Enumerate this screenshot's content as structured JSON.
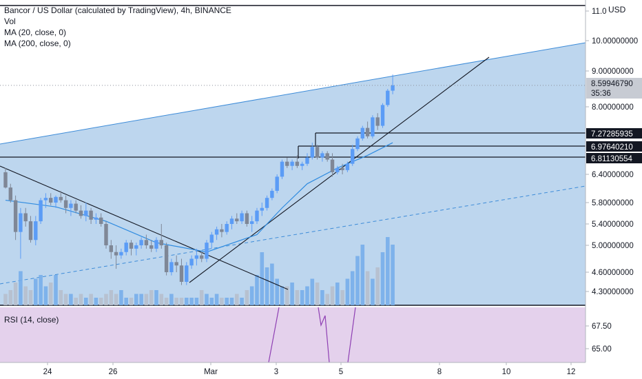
{
  "header": {
    "title": "Bancor / US Dollar (calculated by TradingView), 4h, BINANCE",
    "indicators": [
      "Vol",
      "MA (20, close, 0)",
      "MA (200, close, 0)"
    ],
    "rsi_label": "RSI (14, close)",
    "currency": "USD"
  },
  "price_axis": {
    "ticks": [
      "11.0",
      "10.00000000",
      "9.00000000",
      "8.00000000",
      "6.40000000",
      "5.80000000",
      "5.40000000",
      "5.00000000",
      "4.60000000",
      "4.30000000"
    ]
  },
  "rsi_axis": {
    "ticks": [
      "67.50",
      "65.00"
    ]
  },
  "time_axis": {
    "ticks": [
      "24",
      "26",
      "Mar",
      "3",
      "5",
      "8",
      "10",
      "12"
    ]
  },
  "tags": {
    "last_price": "8.59946790",
    "countdown": "35:36",
    "levels": [
      "7.27285935",
      "6.97640210",
      "6.81130554"
    ]
  },
  "colors": {
    "up": "#5b9cf6",
    "down": "#7f8796",
    "channel_fill": "#bdd6ee",
    "channel_line": "#3c8bd8",
    "ma_line": "#2f8be0",
    "rsi_bg": "#e4d1ec",
    "rsi_line": "#8e3fb3",
    "vol_up": "#77aeea",
    "vol_down": "#b6bfcc"
  },
  "chart_data": {
    "type": "candlestick",
    "interval": "4h",
    "symbol": "BNTUSD",
    "exchange": "BINANCE",
    "candles": [
      [
        6.45,
        6.55,
        6.1,
        6.12
      ],
      [
        6.12,
        6.2,
        5.8,
        5.85
      ],
      [
        5.85,
        5.95,
        5.1,
        5.25
      ],
      [
        5.25,
        5.7,
        4.8,
        5.6
      ],
      [
        5.6,
        5.7,
        5.35,
        5.45
      ],
      [
        5.45,
        5.55,
        5.05,
        5.1
      ],
      [
        5.1,
        5.55,
        5.0,
        5.45
      ],
      [
        5.45,
        5.9,
        5.4,
        5.85
      ],
      [
        5.85,
        6.0,
        5.7,
        5.9
      ],
      [
        5.9,
        6.0,
        5.75,
        5.8
      ],
      [
        5.8,
        5.95,
        5.7,
        5.92
      ],
      [
        5.92,
        6.05,
        5.8,
        5.85
      ],
      [
        5.85,
        5.95,
        5.6,
        5.7
      ],
      [
        5.7,
        5.85,
        5.55,
        5.78
      ],
      [
        5.78,
        5.85,
        5.6,
        5.65
      ],
      [
        5.65,
        5.75,
        5.5,
        5.55
      ],
      [
        5.55,
        5.8,
        5.45,
        5.65
      ],
      [
        5.65,
        5.7,
        5.4,
        5.48
      ],
      [
        5.48,
        5.6,
        5.4,
        5.52
      ],
      [
        5.52,
        5.6,
        5.35,
        5.4
      ],
      [
        5.4,
        5.45,
        4.95,
        5.0
      ],
      [
        5.0,
        5.1,
        4.8,
        4.9
      ],
      [
        4.9,
        5.0,
        4.65,
        4.85
      ],
      [
        4.85,
        4.95,
        4.8,
        4.9
      ],
      [
        4.9,
        5.1,
        4.85,
        5.05
      ],
      [
        5.05,
        5.1,
        4.85,
        4.95
      ],
      [
        4.95,
        5.05,
        4.85,
        5.0
      ],
      [
        5.0,
        5.15,
        4.95,
        5.1
      ],
      [
        5.1,
        5.2,
        4.95,
        5.0
      ],
      [
        5.0,
        5.1,
        4.9,
        4.95
      ],
      [
        4.95,
        5.15,
        4.9,
        5.1
      ],
      [
        5.1,
        5.4,
        4.95,
        5.0
      ],
      [
        5.0,
        5.05,
        4.55,
        4.6
      ],
      [
        4.6,
        4.8,
        4.55,
        4.75
      ],
      [
        4.75,
        4.85,
        4.6,
        4.7
      ],
      [
        4.7,
        4.8,
        4.4,
        4.45
      ],
      [
        4.45,
        4.75,
        4.4,
        4.7
      ],
      [
        4.7,
        4.85,
        4.65,
        4.8
      ],
      [
        4.8,
        4.95,
        4.7,
        4.85
      ],
      [
        4.85,
        4.9,
        4.75,
        4.8
      ],
      [
        4.8,
        5.1,
        4.75,
        5.05
      ],
      [
        5.05,
        5.25,
        4.95,
        5.2
      ],
      [
        5.2,
        5.35,
        5.1,
        5.3
      ],
      [
        5.3,
        5.4,
        5.15,
        5.25
      ],
      [
        5.25,
        5.45,
        5.2,
        5.4
      ],
      [
        5.4,
        5.55,
        5.3,
        5.5
      ],
      [
        5.5,
        5.6,
        5.4,
        5.45
      ],
      [
        5.45,
        5.65,
        5.4,
        5.6
      ],
      [
        5.6,
        5.65,
        5.35,
        5.4
      ],
      [
        5.4,
        5.55,
        5.25,
        5.45
      ],
      [
        5.45,
        5.7,
        5.4,
        5.65
      ],
      [
        5.65,
        5.8,
        5.55,
        5.7
      ],
      [
        5.7,
        5.95,
        5.65,
        5.9
      ],
      [
        5.9,
        6.1,
        5.85,
        6.05
      ],
      [
        6.05,
        6.4,
        6.0,
        6.35
      ],
      [
        6.35,
        6.75,
        6.3,
        6.7
      ],
      [
        6.7,
        6.8,
        6.55,
        6.6
      ],
      [
        6.6,
        6.75,
        6.5,
        6.7
      ],
      [
        6.7,
        6.85,
        6.55,
        6.6
      ],
      [
        6.6,
        6.7,
        6.5,
        6.65
      ],
      [
        6.65,
        6.9,
        6.6,
        6.8
      ],
      [
        6.8,
        7.15,
        6.75,
        7.05
      ],
      [
        7.05,
        7.1,
        6.75,
        6.8
      ],
      [
        6.8,
        6.95,
        6.7,
        6.9
      ],
      [
        6.9,
        6.95,
        6.7,
        6.75
      ],
      [
        6.75,
        6.9,
        6.35,
        6.45
      ],
      [
        6.45,
        6.6,
        6.4,
        6.55
      ],
      [
        6.55,
        6.65,
        6.4,
        6.5
      ],
      [
        6.5,
        6.7,
        6.45,
        6.65
      ],
      [
        6.65,
        7.1,
        6.6,
        7.0
      ],
      [
        7.0,
        7.3,
        6.95,
        7.25
      ],
      [
        7.25,
        7.55,
        7.2,
        7.5
      ],
      [
        7.5,
        7.65,
        7.25,
        7.3
      ],
      [
        7.3,
        7.8,
        7.25,
        7.75
      ],
      [
        7.75,
        7.85,
        7.45,
        7.55
      ],
      [
        7.55,
        8.1,
        7.5,
        8.05
      ],
      [
        8.05,
        8.5,
        8.0,
        8.45
      ],
      [
        8.45,
        8.9,
        8.35,
        8.6
      ]
    ],
    "volume": [
      3,
      4,
      6,
      9,
      5,
      4,
      7,
      8,
      5,
      6,
      8,
      4,
      3,
      3,
      2,
      3,
      2,
      3,
      2,
      2,
      3,
      4,
      3,
      4,
      2,
      2,
      3,
      3,
      3,
      4,
      4,
      3,
      2,
      3,
      2,
      2,
      2,
      2,
      2,
      4,
      3,
      2,
      3,
      2,
      2,
      2,
      3,
      2,
      4,
      5,
      8,
      14,
      10,
      11,
      7,
      5,
      5,
      6,
      4,
      4,
      5,
      7,
      6,
      4,
      3,
      5,
      6,
      4,
      7,
      9,
      13,
      16,
      9,
      7,
      10,
      14,
      18,
      16
    ],
    "ma20": [
      [
        0,
        5.85
      ],
      [
        10,
        5.72
      ],
      [
        20,
        5.45
      ],
      [
        30,
        5.05
      ],
      [
        40,
        4.9
      ],
      [
        50,
        5.2
      ],
      [
        55,
        5.7
      ],
      [
        60,
        6.2
      ],
      [
        66,
        6.55
      ],
      [
        72,
        6.85
      ],
      [
        77,
        7.15
      ]
    ],
    "levels": [
      7.27285935,
      6.9764021,
      6.81130554
    ],
    "last_price": 8.5994679,
    "y_ticks": [
      11.0,
      10.0,
      9.0,
      8.0,
      6.4,
      5.8,
      5.4,
      5.0,
      4.6,
      4.3
    ],
    "rsi_ticks": [
      67.5,
      65.0
    ],
    "x_ticks": [
      "24",
      "26",
      "Mar",
      "3",
      "5",
      "8",
      "10",
      "12"
    ]
  }
}
